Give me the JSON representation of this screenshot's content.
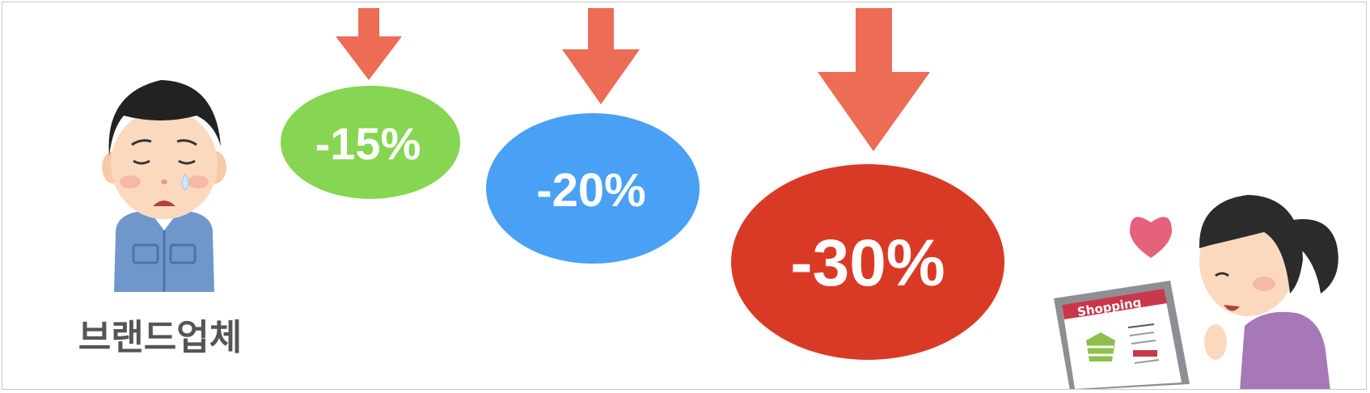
{
  "brand": {
    "label": "브랜드업체"
  },
  "discounts": [
    {
      "label": "-15%",
      "color": "#86d553"
    },
    {
      "label": "-20%",
      "color": "#4aa0f5"
    },
    {
      "label": "-30%",
      "color": "#d93a26"
    }
  ],
  "arrow_color": "#ec6c55",
  "laptop": {
    "screen_title": "Shopping"
  }
}
